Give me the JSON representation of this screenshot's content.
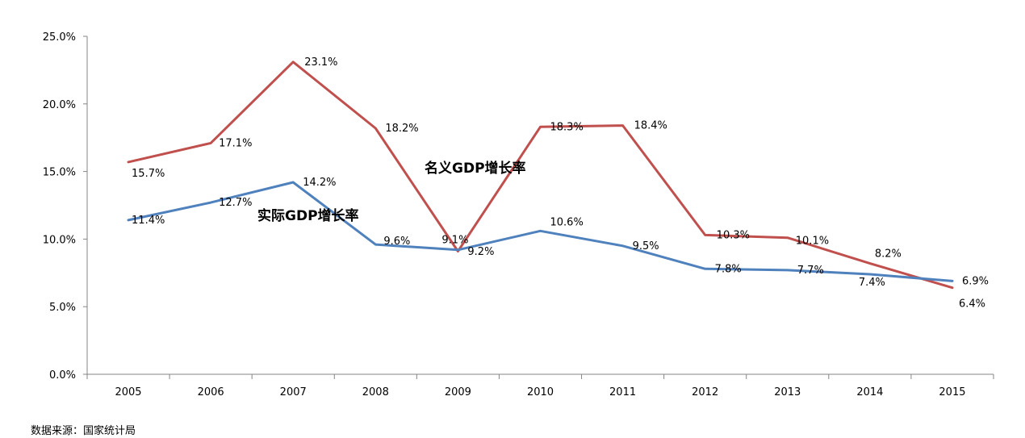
{
  "chart_data": {
    "type": "line",
    "x": [
      "2005",
      "2006",
      "2007",
      "2008",
      "2009",
      "2010",
      "2011",
      "2012",
      "2013",
      "2014",
      "2015"
    ],
    "ylim": [
      0,
      25
    ],
    "yticks": [
      "0.0%",
      "5.0%",
      "10.0%",
      "15.0%",
      "20.0%",
      "25.0%"
    ],
    "grid": false,
    "legend": "none",
    "series": [
      {
        "name": "名义GDP增长率",
        "color": "#c0504d",
        "values": [
          15.7,
          17.1,
          23.1,
          18.2,
          9.1,
          18.3,
          18.4,
          10.3,
          10.1,
          8.2,
          6.4
        ],
        "labels": [
          "15.7%",
          "17.1%",
          "23.1%",
          "18.2%",
          "9.1%",
          "18.3%",
          "18.4%",
          "10.3%",
          "10.1%",
          "8.2%",
          "6.4%"
        ]
      },
      {
        "name": "实际GDP增长率",
        "color": "#4f81bd",
        "values": [
          11.4,
          12.7,
          14.2,
          9.6,
          9.2,
          10.6,
          9.5,
          7.8,
          7.7,
          7.4,
          6.9
        ],
        "labels": [
          "11.4%",
          "12.7%",
          "14.2%",
          "9.6%",
          "9.2%",
          "10.6%",
          "9.5%",
          "7.8%",
          "7.7%",
          "7.4%",
          "6.9%"
        ]
      }
    ]
  },
  "source": "数据来源：国家统计局"
}
